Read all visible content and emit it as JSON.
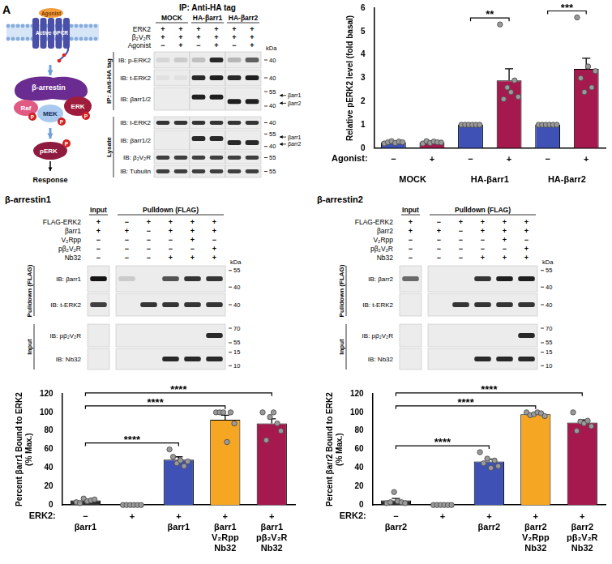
{
  "panel_label": "A",
  "diagram": {
    "agonist": "Agonist",
    "receptor": "Active GPCR",
    "arrestin": "β-arrestin",
    "raf": "Raf",
    "mek": "MEK",
    "erk": "ERK",
    "phospho": "P",
    "perk": "pERK",
    "response": "Response"
  },
  "blots": [
    {
      "title": "IP: Anti-HA tag",
      "kda_label": "kDa",
      "groups": [
        {
          "label": "MOCK",
          "lanes": 2
        },
        {
          "label": "HA-βarr1",
          "lanes": 2
        },
        {
          "label": "HA-βarr2",
          "lanes": 2
        }
      ],
      "conditions": [
        {
          "label": "ERK2",
          "marks": [
            "+",
            "+",
            "+",
            "+",
            "+",
            "+"
          ]
        },
        {
          "label": "β₂V₂R",
          "marks": [
            "+",
            "+",
            "+",
            "+",
            "+",
            "+"
          ]
        },
        {
          "label": "Agonist",
          "marks": [
            "−",
            "+",
            "−",
            "+",
            "−",
            "+"
          ]
        }
      ],
      "sections": [
        {
          "label": "IP: Anti-HA tag",
          "rows": [
            {
              "label": "IB: p-ERK2",
              "markers": [
                40
              ],
              "bands": [
                0.1,
                0.15,
                0.2,
                0.9,
                0.25,
                0.65
              ]
            },
            {
              "label": "IB: t-ERK2",
              "markers": [
                40
              ],
              "bands": [
                0.05,
                0.05,
                0.9,
                0.95,
                0.9,
                0.95
              ]
            },
            {
              "label": "IB: βarr1/2",
              "markers": [
                55,
                40
              ],
              "band_labels": [
                "βarr1",
                "βarr2"
              ],
              "band_of": [
                "βarr1",
                "βarr1",
                "βarr1",
                "βarr1",
                "βarr2",
                "βarr2"
              ],
              "bands": [
                0,
                0,
                0.95,
                0.95,
                0.95,
                0.95
              ]
            }
          ]
        },
        {
          "label": "Lysate",
          "rows": [
            {
              "label": "IB: t-ERK2",
              "markers": [
                40
              ],
              "bands": [
                0.85,
                0.85,
                0.85,
                0.85,
                0.85,
                0.85
              ]
            },
            {
              "label": "IB: βarr1/2",
              "markers": [
                55,
                40
              ],
              "band_labels": [
                "βarr1",
                "βarr2"
              ],
              "band_of": [
                "βarr1",
                "βarr1",
                "βarr1",
                "βarr1",
                "βarr2",
                "βarr2"
              ],
              "bands": [
                0,
                0,
                0.9,
                0.9,
                0.9,
                0.9
              ]
            },
            {
              "label": "IB: β₂V₂R",
              "markers": [
                55
              ],
              "bands": [
                0.8,
                0.8,
                0.8,
                0.8,
                0.8,
                0.8
              ]
            },
            {
              "label": "IB: Tubulin",
              "markers": [
                55
              ],
              "bands": [
                0.8,
                0.8,
                0.8,
                0.8,
                0.8,
                0.8
              ]
            }
          ]
        }
      ]
    },
    {
      "title": "β-arrestin1",
      "kda_label": "kDa",
      "groups": [
        {
          "label": "Input",
          "lanes": 1
        },
        {
          "label": "Pulldown (FLAG)",
          "lanes": 5
        }
      ],
      "conditions": [
        {
          "label": "FLAG-ERK2",
          "marks": [
            "+",
            "−",
            "+",
            "+",
            "+",
            "+"
          ]
        },
        {
          "label": "βarr1",
          "marks": [
            "+",
            "+",
            "−",
            "+",
            "+",
            "+"
          ]
        },
        {
          "label": "V₂Rpp",
          "marks": [
            "−",
            "−",
            "−",
            "−",
            "+",
            "−"
          ]
        },
        {
          "label": "pβ₂V₂R",
          "marks": [
            "−",
            "−",
            "−",
            "−",
            "−",
            "+"
          ]
        },
        {
          "label": "Nb32",
          "marks": [
            "−",
            "−",
            "−",
            "+",
            "+",
            "+"
          ]
        }
      ],
      "sections": [
        {
          "label": "Pulldown (FLAG)",
          "rows": [
            {
              "label": "IB: βarr1",
              "markers": [
                55,
                40
              ],
              "bands": [
                1,
                0.15,
                0,
                0.7,
                0.85,
                0.85
              ]
            },
            {
              "label": "IB: t-ERK2",
              "markers": [
                40
              ],
              "bands": [
                0.8,
                0,
                0.85,
                0.85,
                0.85,
                0.85
              ]
            }
          ]
        },
        {
          "label": "Input",
          "rows": [
            {
              "label": "IB: pβ₂V₂R",
              "markers": [
                70,
                55
              ],
              "bands": [
                0,
                0,
                0,
                0,
                0,
                0.9
              ]
            },
            {
              "label": "IB: Nb32",
              "markers": [
                15,
                10
              ],
              "bands": [
                0,
                0,
                0,
                0.9,
                0.9,
                0.9
              ]
            }
          ]
        }
      ]
    },
    {
      "title": "β-arrestin2",
      "kda_label": "kDa",
      "groups": [
        {
          "label": "Input",
          "lanes": 1
        },
        {
          "label": "Pulldown (FLAG)",
          "lanes": 5
        }
      ],
      "conditions": [
        {
          "label": "FLAG-ERK2",
          "marks": [
            "+",
            "−",
            "+",
            "+",
            "+",
            "+"
          ]
        },
        {
          "label": "βarr2",
          "marks": [
            "+",
            "+",
            "−",
            "+",
            "+",
            "+"
          ]
        },
        {
          "label": "V₂Rpp",
          "marks": [
            "−",
            "−",
            "−",
            "−",
            "+",
            "−"
          ]
        },
        {
          "label": "pβ₂V₂R",
          "marks": [
            "−",
            "−",
            "−",
            "−",
            "−",
            "+"
          ]
        },
        {
          "label": "Nb32",
          "marks": [
            "−",
            "−",
            "−",
            "+",
            "+",
            "+"
          ]
        }
      ],
      "sections": [
        {
          "label": "Pulldown (FLAG)",
          "rows": [
            {
              "label": "IB: βarr2",
              "markers": [
                55,
                40
              ],
              "bands": [
                0.6,
                0,
                0,
                0.85,
                0.95,
                0.95
              ]
            },
            {
              "label": "IB: t-ERK2",
              "markers": [
                40
              ],
              "bands": [
                0,
                0,
                0.85,
                0.85,
                0.85,
                0.85
              ]
            }
          ]
        },
        {
          "label": "Input",
          "rows": [
            {
              "label": "IB: pβ₂V₂R",
              "markers": [
                70,
                55
              ],
              "bands": [
                0,
                0,
                0,
                0,
                0,
                0.9
              ]
            },
            {
              "label": "IB: Nb32",
              "markers": [
                15,
                10
              ],
              "bands": [
                0,
                0,
                0,
                0.9,
                0.9,
                0.9
              ]
            }
          ]
        }
      ]
    }
  ],
  "chart_data": [
    {
      "type": "bar",
      "y_label": "Relative pERK2 level (fold basal)",
      "categories": [
        "−",
        "+",
        "−",
        "+",
        "−",
        "+"
      ],
      "groups": [
        "MOCK",
        "HA-βarr1",
        "HA-βarr2"
      ],
      "x_row_label": "Agonist:",
      "values": [
        0.25,
        0.25,
        1,
        2.9,
        1,
        3.4
      ],
      "errors": [
        0.05,
        0.05,
        0,
        0.5,
        0,
        0.45
      ],
      "points": [
        [
          0.2,
          0.25,
          0.3,
          0.22,
          0.28,
          0.25
        ],
        [
          0.2,
          0.3,
          0.22,
          0.28,
          0.25,
          0.24
        ],
        [
          1,
          1,
          1,
          1,
          1,
          1
        ],
        [
          5.3,
          2.1,
          2.6,
          2.4,
          2.9,
          2.2
        ],
        [
          1,
          1,
          1,
          1,
          1,
          1
        ],
        [
          5.6,
          3.0,
          2.4,
          3.5,
          2.6,
          3.3
        ]
      ],
      "colors": [
        "#3f51b5",
        "#a6194f",
        "#3f51b5",
        "#a6194f",
        "#3f51b5",
        "#a6194f"
      ],
      "ylim": [
        0,
        6
      ],
      "yticks": [
        0,
        1,
        2,
        3,
        4,
        5,
        6
      ],
      "grid": false,
      "significance": [
        {
          "between": [
            2,
            3
          ],
          "label": "**"
        },
        {
          "between": [
            4,
            5
          ],
          "label": "***"
        }
      ]
    },
    {
      "type": "bar",
      "y_label": [
        "Percent βarr1 Bound to ERK2",
        "(% Max.)"
      ],
      "categories": [
        [
          "−",
          "βarr1"
        ],
        [
          "+"
        ],
        [
          "+",
          "βarr1"
        ],
        [
          "+",
          "βarr1",
          "V₂Rpp",
          "Nb32"
        ],
        [
          "+",
          "βarr1",
          "pβ₂V₂R",
          "Nb32"
        ]
      ],
      "x_row_label": "ERK2:",
      "values": [
        5,
        0,
        49,
        92,
        88
      ],
      "errors": [
        1,
        0,
        3,
        5,
        5
      ],
      "points": [
        [
          3,
          2,
          7,
          4,
          5,
          6
        ],
        [
          0,
          0,
          0,
          0,
          0,
          0
        ],
        [
          60,
          52,
          45,
          48,
          42,
          47
        ],
        [
          100,
          100,
          100,
          68,
          100,
          88
        ],
        [
          100,
          70,
          95,
          100,
          88,
          80
        ]
      ],
      "colors": [
        "#2d2d2d",
        "#2d2d2d",
        "#3f51b5",
        "#f5a623",
        "#a6194f"
      ],
      "ylim": [
        0,
        120
      ],
      "yticks": [
        0,
        20,
        40,
        60,
        80,
        100,
        120
      ],
      "grid": false,
      "significance": [
        {
          "between": [
            0,
            2
          ],
          "label": "****"
        },
        {
          "between": [
            0,
            3
          ],
          "label": "****"
        },
        {
          "between": [
            0,
            4
          ],
          "label": "****"
        }
      ]
    },
    {
      "type": "bar",
      "y_label": [
        "Percent βarr2 Bound to ERK2",
        "(% Max.)"
      ],
      "categories": [
        [
          "−",
          "βarr2"
        ],
        [
          "+"
        ],
        [
          "+",
          "βarr2"
        ],
        [
          "+",
          "βarr2",
          "V₂Rpp",
          "Nb32"
        ],
        [
          "+",
          "βarr2",
          "pβ₂V₂R",
          "Nb32"
        ]
      ],
      "x_row_label": "ERK2:",
      "values": [
        5,
        0,
        47,
        98,
        89
      ],
      "errors": [
        2,
        0,
        2.5,
        0.7,
        2.8
      ],
      "points": [
        [
          2,
          3,
          14,
          4,
          3,
          2
        ],
        [
          0,
          0,
          0,
          0,
          0,
          0
        ],
        [
          57,
          45,
          50,
          40,
          48,
          42
        ],
        [
          100,
          97,
          98,
          100,
          99,
          96
        ],
        [
          100,
          80,
          90,
          88,
          91,
          85
        ]
      ],
      "colors": [
        "#2d2d2d",
        "#2d2d2d",
        "#3f51b5",
        "#f5a623",
        "#a6194f"
      ],
      "ylim": [
        0,
        120
      ],
      "yticks": [
        0,
        20,
        40,
        60,
        80,
        100,
        120
      ],
      "grid": false,
      "significance": [
        {
          "between": [
            0,
            2
          ],
          "label": "****"
        },
        {
          "between": [
            0,
            3
          ],
          "label": "****"
        },
        {
          "between": [
            0,
            4
          ],
          "label": "****"
        }
      ]
    }
  ]
}
